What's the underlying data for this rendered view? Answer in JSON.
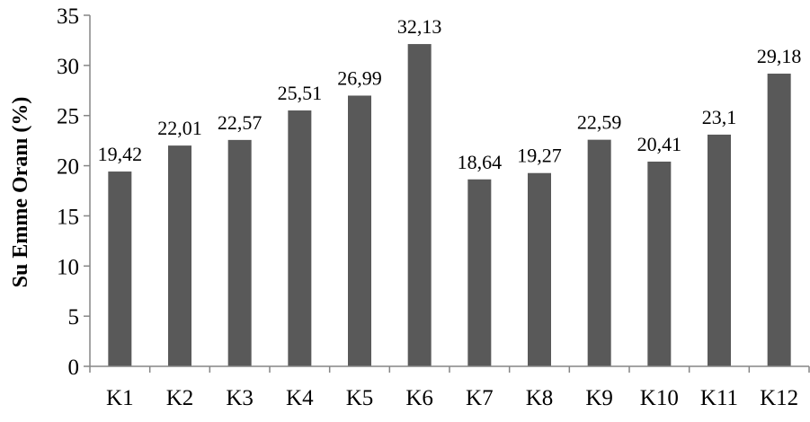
{
  "chart_data": {
    "type": "bar",
    "title": "",
    "xlabel": "",
    "ylabel": "Su Emme Oranı (%)",
    "ylim": [
      0,
      35
    ],
    "yticks": [
      0,
      5,
      10,
      15,
      20,
      25,
      30,
      35
    ],
    "ytick_labels": [
      "0",
      "5",
      "10",
      "15",
      "20",
      "25",
      "30",
      "35"
    ],
    "grid": false,
    "legend": "none",
    "bar_color": "#595959",
    "categories": [
      "K1",
      "K2",
      "K3",
      "K4",
      "K5",
      "K6",
      "K7",
      "K8",
      "K9",
      "K10",
      "K11",
      "K12"
    ],
    "values": [
      19.42,
      22.01,
      22.57,
      25.51,
      26.99,
      32.13,
      18.64,
      19.27,
      22.59,
      20.41,
      23.1,
      29.18
    ],
    "data_labels": [
      "19,42",
      "22,01",
      "22,57",
      "25,51",
      "26,99",
      "32,13",
      "18,64",
      "19,27",
      "22,59",
      "20,41",
      "23,1",
      "29,18"
    ]
  }
}
